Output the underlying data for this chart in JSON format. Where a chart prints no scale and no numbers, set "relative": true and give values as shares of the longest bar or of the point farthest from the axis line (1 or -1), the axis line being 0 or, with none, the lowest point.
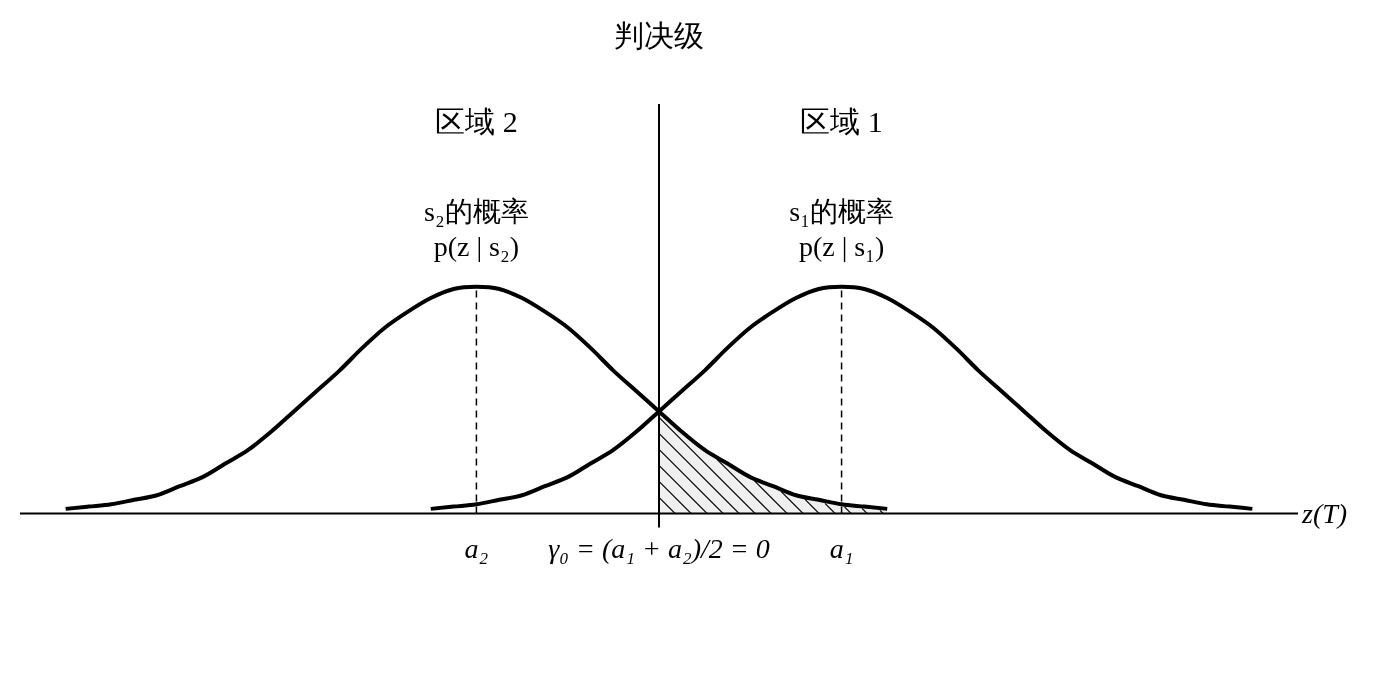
{
  "chart_data": {
    "type": "line",
    "relative": true,
    "marker": "none",
    "xlabel": "z(T)",
    "categories": [
      null,
      null,
      null,
      null,
      null,
      null,
      null,
      null,
      null,
      null,
      null,
      null,
      null,
      null,
      null,
      null,
      null,
      null,
      null,
      null,
      "a₂",
      null,
      null,
      null,
      null,
      null,
      null,
      null,
      "γ₀ = (a₁ + a₂)/2 = 0",
      null,
      null,
      null,
      null,
      null,
      null,
      null,
      "a₁",
      null,
      null,
      null,
      null,
      null,
      null,
      null,
      null,
      null,
      null,
      null,
      null,
      null,
      null,
      null,
      null,
      null,
      null,
      null,
      null
    ],
    "ref_lines": [
      {
        "axis": "x",
        "value": "γ₀ = (a₁ + a₂)/2 = 0",
        "label": "判决级",
        "color": "#000000"
      },
      {
        "axis": "x",
        "value": "a₂",
        "line_style": "dashed",
        "color": "#000000"
      },
      {
        "axis": "x",
        "value": "a₁",
        "line_style": "dashed",
        "color": "#000000"
      }
    ],
    "annotations": [
      "区域 2",
      "区域 1"
    ],
    "series": [
      {
        "name": "s₂的概率\np(z | s₂)",
        "color": "#000000",
        "values": [
          null,
          null,
          0.02,
          0.03,
          0.04,
          0.06,
          0.08,
          0.12,
          0.16,
          0.22,
          0.28,
          0.36,
          0.45,
          0.54,
          0.63,
          0.73,
          0.82,
          0.89,
          0.95,
          0.99,
          1,
          0.99,
          0.95,
          0.89,
          0.82,
          0.73,
          0.63,
          0.54,
          0.45,
          0.36,
          0.28,
          0.22,
          0.16,
          0.12,
          0.08,
          0.06,
          0.04,
          0.03,
          0.02,
          null,
          null,
          null,
          null,
          null,
          null,
          null,
          null,
          null,
          null,
          null,
          null,
          null,
          null,
          null,
          null,
          null,
          null
        ]
      },
      {
        "name": "s₁的概率\np(z | s₁)",
        "color": "#000000",
        "values": [
          null,
          null,
          null,
          null,
          null,
          null,
          null,
          null,
          null,
          null,
          null,
          null,
          null,
          null,
          null,
          null,
          null,
          null,
          0.02,
          0.03,
          0.04,
          0.06,
          0.08,
          0.12,
          0.16,
          0.22,
          0.28,
          0.36,
          0.45,
          0.54,
          0.63,
          0.73,
          0.82,
          0.89,
          0.95,
          0.99,
          1,
          0.99,
          0.95,
          0.89,
          0.82,
          0.73,
          0.63,
          0.54,
          0.45,
          0.36,
          0.28,
          0.22,
          0.16,
          0.12,
          0.08,
          0.06,
          0.04,
          0.03,
          0.02,
          null,
          null
        ]
      },
      {
        "type": "area",
        "color": "#000000",
        "values": [
          null,
          null,
          null,
          null,
          null,
          null,
          null,
          null,
          null,
          null,
          null,
          null,
          null,
          null,
          null,
          null,
          null,
          null,
          null,
          null,
          null,
          null,
          null,
          null,
          null,
          null,
          null,
          null,
          0.45,
          0.36,
          0.28,
          0.22,
          0.16,
          0.12,
          0.08,
          0.06,
          0.04,
          0.03,
          0.02,
          null,
          null,
          null,
          null,
          null,
          null,
          null,
          null,
          null,
          null,
          null,
          null,
          null,
          null,
          null,
          null,
          null,
          null
        ]
      }
    ]
  }
}
